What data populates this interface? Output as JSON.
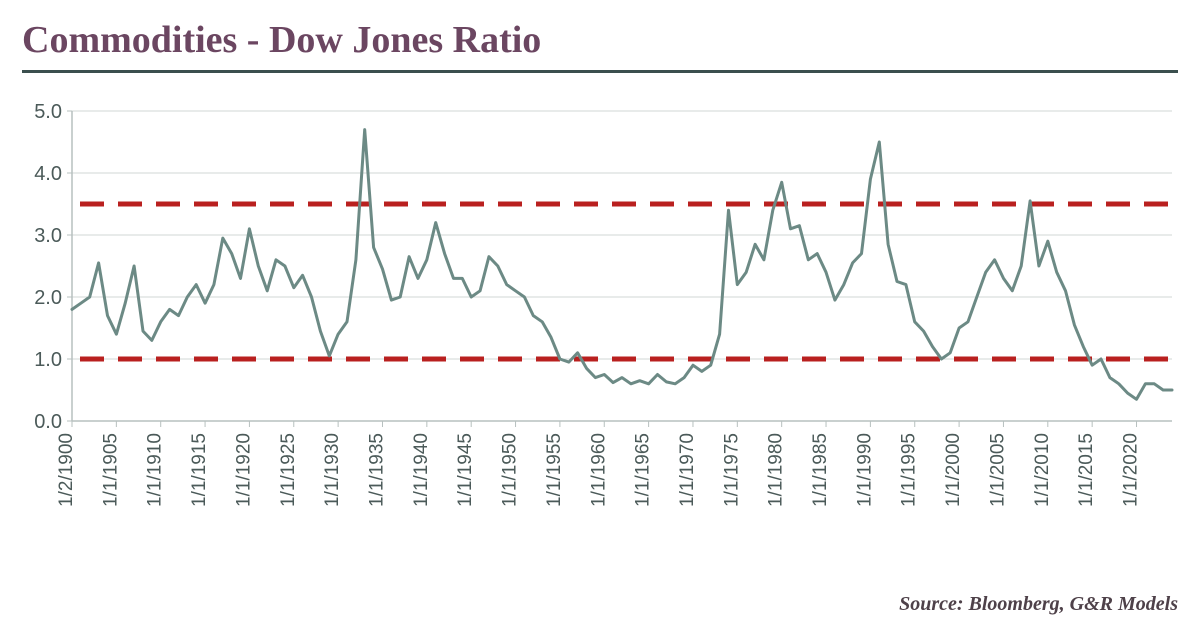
{
  "title": "Commodities - Dow Jones Ratio",
  "source": "Source: Bloomberg, G&R Models",
  "chart": {
    "type": "line",
    "background_color": "#ffffff",
    "line_color": "#6c8a85",
    "line_width": 3,
    "reference_line_color": "#b9201f",
    "reference_line_width": 5,
    "reference_line_dash": "24,14",
    "axis_color": "#b7c0bf",
    "grid_color": "#d1d7d6",
    "tick_label_color": "#4b5a59",
    "tick_fontsize": 20,
    "xtick_fontsize": 19,
    "ylim": [
      0.0,
      5.0
    ],
    "ytick_step": 1.0,
    "reference_lines": [
      1.0,
      3.5
    ],
    "x_labels": [
      "1/2/1900",
      "1/1/1905",
      "1/1/1910",
      "1/1/1915",
      "1/1/1920",
      "1/1/1925",
      "1/1/1930",
      "1/1/1935",
      "1/1/1940",
      "1/1/1945",
      "1/1/1950",
      "1/1/1955",
      "1/1/1960",
      "1/1/1965",
      "1/1/1970",
      "1/1/1975",
      "1/1/1980",
      "1/1/1985",
      "1/1/1990",
      "1/1/1995",
      "1/1/2000",
      "1/1/2005",
      "1/1/2010",
      "1/1/2015",
      "1/1/2020"
    ],
    "series": {
      "x": [
        1900,
        1901,
        1902,
        1903,
        1904,
        1905,
        1906,
        1907,
        1908,
        1909,
        1910,
        1911,
        1912,
        1913,
        1914,
        1915,
        1916,
        1917,
        1918,
        1919,
        1920,
        1921,
        1922,
        1923,
        1924,
        1925,
        1926,
        1927,
        1928,
        1929,
        1930,
        1931,
        1932,
        1933,
        1934,
        1935,
        1936,
        1937,
        1938,
        1939,
        1940,
        1941,
        1942,
        1943,
        1944,
        1945,
        1946,
        1947,
        1948,
        1949,
        1950,
        1951,
        1952,
        1953,
        1954,
        1955,
        1956,
        1957,
        1958,
        1959,
        1960,
        1961,
        1962,
        1963,
        1964,
        1965,
        1966,
        1967,
        1968,
        1969,
        1970,
        1971,
        1972,
        1973,
        1974,
        1975,
        1976,
        1977,
        1978,
        1979,
        1980,
        1981,
        1982,
        1983,
        1984,
        1985,
        1986,
        1987,
        1988,
        1989,
        1990,
        1991,
        1992,
        1993,
        1994,
        1995,
        1996,
        1997,
        1998,
        1999,
        2000,
        2001,
        2002,
        2003,
        2004,
        2005,
        2006,
        2007,
        2008,
        2009,
        2010,
        2011,
        2012,
        2013,
        2014,
        2015,
        2016,
        2017,
        2018,
        2019,
        2020,
        2021,
        2022,
        2023,
        2024
      ],
      "y": [
        1.8,
        1.9,
        2.0,
        2.55,
        1.7,
        1.4,
        1.9,
        2.5,
        1.45,
        1.3,
        1.6,
        1.8,
        1.7,
        2.0,
        2.2,
        1.9,
        2.2,
        2.95,
        2.7,
        2.3,
        3.1,
        2.5,
        2.1,
        2.6,
        2.5,
        2.15,
        2.35,
        2.0,
        1.45,
        1.05,
        1.4,
        1.6,
        2.6,
        4.7,
        2.8,
        2.45,
        1.95,
        2.0,
        2.65,
        2.3,
        2.6,
        3.2,
        2.7,
        2.3,
        2.3,
        2.0,
        2.1,
        2.65,
        2.5,
        2.2,
        2.1,
        2.0,
        1.7,
        1.6,
        1.35,
        1.0,
        0.95,
        1.1,
        0.85,
        0.7,
        0.75,
        0.62,
        0.7,
        0.6,
        0.65,
        0.6,
        0.75,
        0.63,
        0.6,
        0.7,
        0.9,
        0.8,
        0.9,
        1.4,
        3.4,
        2.2,
        2.4,
        2.85,
        2.6,
        3.4,
        3.85,
        3.1,
        3.15,
        2.6,
        2.7,
        2.4,
        1.95,
        2.2,
        2.55,
        2.7,
        3.9,
        4.5,
        2.85,
        2.25,
        2.2,
        1.6,
        1.45,
        1.2,
        1.0,
        1.1,
        1.5,
        1.6,
        2.0,
        2.4,
        2.6,
        2.3,
        2.1,
        2.5,
        3.55,
        2.5,
        2.9,
        2.4,
        2.1,
        1.55,
        1.2,
        0.9,
        1.0,
        0.7,
        0.6,
        0.45,
        0.35,
        0.6,
        0.6,
        0.5,
        0.5
      ]
    }
  }
}
